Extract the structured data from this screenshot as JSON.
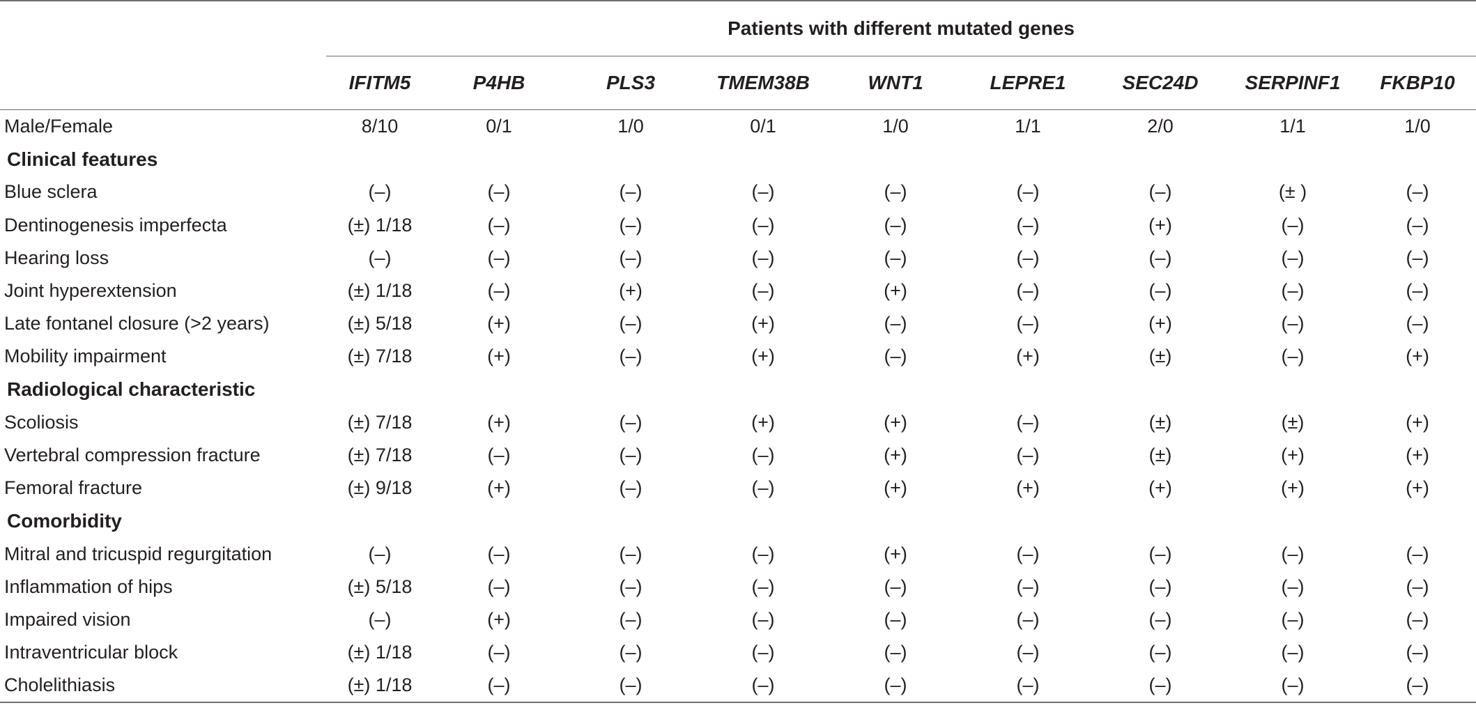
{
  "header": {
    "group_title": "Patients with different mutated genes",
    "genes": [
      "IFITM5",
      "P4HB",
      "PLS3",
      "TMEM38B",
      "WNT1",
      "LEPRE1",
      "SEC24D",
      "SERPINF1",
      "FKBP10"
    ]
  },
  "rows": [
    {
      "type": "data",
      "label": "Male/Female",
      "values": [
        "8/10",
        "0/1",
        "1/0",
        "0/1",
        "1/0",
        "1/1",
        "2/0",
        "1/1",
        "1/0"
      ]
    },
    {
      "type": "section",
      "label": "Clinical features"
    },
    {
      "type": "data",
      "label": "Blue sclera",
      "values": [
        "(–)",
        "(–)",
        "(–)",
        "(–)",
        "(–)",
        "(–)",
        "(–)",
        "(± )",
        "(–)"
      ]
    },
    {
      "type": "data",
      "label": "Dentinogenesis imperfecta",
      "values": [
        "(±) 1/18",
        "(–)",
        "(–)",
        "(–)",
        "(–)",
        "(–)",
        "(+)",
        "(–)",
        "(–)"
      ]
    },
    {
      "type": "data",
      "label": "Hearing loss",
      "values": [
        "(–)",
        "(–)",
        "(–)",
        "(–)",
        "(–)",
        "(–)",
        "(–)",
        "(–)",
        "(–)"
      ]
    },
    {
      "type": "data",
      "label": "Joint hyperextension",
      "values": [
        "(±) 1/18",
        "(–)",
        "(+)",
        "(–)",
        "(+)",
        "(–)",
        "(–)",
        "(–)",
        "(–)"
      ]
    },
    {
      "type": "data",
      "label": "Late fontanel closure (>2 years)",
      "values": [
        "(±) 5/18",
        "(+)",
        "(–)",
        "(+)",
        "(–)",
        "(–)",
        "(+)",
        "(–)",
        "(–)"
      ]
    },
    {
      "type": "data",
      "label": "Mobility impairment",
      "values": [
        "(±) 7/18",
        "(+)",
        "(–)",
        "(+)",
        "(–)",
        "(+)",
        "(±)",
        "(–)",
        "(+)"
      ]
    },
    {
      "type": "section",
      "label": "Radiological characteristic"
    },
    {
      "type": "data",
      "label": "Scoliosis",
      "values": [
        "(±) 7/18",
        "(+)",
        "(–)",
        "(+)",
        "(+)",
        "(–)",
        "(±)",
        "(±)",
        "(+)"
      ]
    },
    {
      "type": "data",
      "label": "Vertebral compression fracture",
      "values": [
        "(±) 7/18",
        "(–)",
        "(–)",
        "(–)",
        "(+)",
        "(–)",
        "(±)",
        "(+)",
        "(+)"
      ]
    },
    {
      "type": "data",
      "label": "Femoral fracture",
      "values": [
        "(±) 9/18",
        "(+)",
        "(–)",
        "(–)",
        "(+)",
        "(+)",
        "(+)",
        "(+)",
        "(+)"
      ]
    },
    {
      "type": "section",
      "label": "Comorbidity"
    },
    {
      "type": "data",
      "label": "Mitral and tricuspid regurgitation",
      "values": [
        "(–)",
        "(–)",
        "(–)",
        "(–)",
        "(+)",
        "(–)",
        "(–)",
        "(–)",
        "(–)"
      ]
    },
    {
      "type": "data",
      "label": "Inflammation of hips",
      "values": [
        "(±) 5/18",
        "(–)",
        "(–)",
        "(–)",
        "(–)",
        "(–)",
        "(–)",
        "(–)",
        "(–)"
      ]
    },
    {
      "type": "data",
      "label": "Impaired vision",
      "values": [
        "(–)",
        "(+)",
        "(–)",
        "(–)",
        "(–)",
        "(–)",
        "(–)",
        "(–)",
        "(–)"
      ]
    },
    {
      "type": "data",
      "label": "Intraventricular block",
      "values": [
        "(±) 1/18",
        "(–)",
        "(–)",
        "(–)",
        "(–)",
        "(–)",
        "(–)",
        "(–)",
        "(–)"
      ]
    },
    {
      "type": "data",
      "label": "Cholelithiasis",
      "values": [
        "(±) 1/18",
        "(–)",
        "(–)",
        "(–)",
        "(–)",
        "(–)",
        "(–)",
        "(–)",
        "(–)"
      ]
    }
  ]
}
